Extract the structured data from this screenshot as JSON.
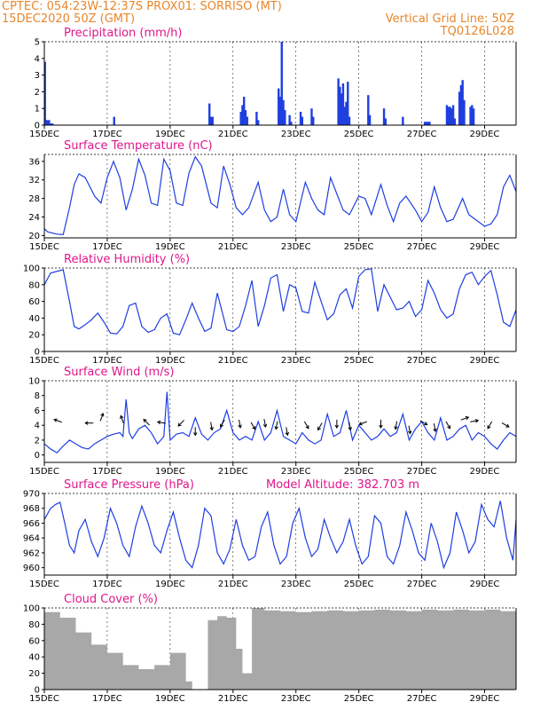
{
  "header": {
    "line1": "CPTEC:   054:23W-12:37S   PROX01: SORRISO (MT)",
    "line2": "15DEC2020 50Z (GMT)",
    "right1": "Vertical Grid Line: 50Z",
    "right2": "TQ0126L028"
  },
  "colors": {
    "series": "#1f3fe0",
    "cloud": "#a8a8a8",
    "title": "#e0168c",
    "header": "#e8862a"
  },
  "chart_data": [
    {
      "type": "bar",
      "title": "Precipitation  (mm/h)",
      "xlim": [
        0,
        15
      ],
      "ylim": [
        0,
        5
      ],
      "yticks": [
        0,
        1,
        2,
        3,
        4,
        5
      ],
      "xticks": [
        0,
        2,
        4,
        6,
        8,
        10,
        12,
        14
      ],
      "xtick_labels": [
        "15DEC",
        "17DEC",
        "19DEC",
        "21DEC",
        "23DEC",
        "25DEC",
        "27DEC",
        "29DEC"
      ],
      "x": [
        0.02,
        0.06,
        0.1,
        0.15,
        0.2,
        0.26,
        2.22,
        5.25,
        5.3,
        5.35,
        6.25,
        6.3,
        6.35,
        6.4,
        6.45,
        6.75,
        6.8,
        7.45,
        7.5,
        7.55,
        7.6,
        7.65,
        7.8,
        7.85,
        8.15,
        8.2,
        8.5,
        8.55,
        9.35,
        9.4,
        9.45,
        9.5,
        9.55,
        9.6,
        9.65,
        9.7,
        10.3,
        10.35,
        10.8,
        10.85,
        11.4,
        12.1,
        12.15,
        12.2,
        12.25,
        12.8,
        12.85,
        12.9,
        12.95,
        13.0,
        13.05,
        13.2,
        13.25,
        13.3,
        13.35,
        13.55,
        13.6,
        13.65
      ],
      "values": [
        3.8,
        0.3,
        0.3,
        0.3,
        0.1,
        0.1,
        0.5,
        1.3,
        0.5,
        0.5,
        0.8,
        1.2,
        1.7,
        0.9,
        0.5,
        0.8,
        0.3,
        2.2,
        1.7,
        5.0,
        1.5,
        0.9,
        0.6,
        0.2,
        0.8,
        0.5,
        1.0,
        0.5,
        2.8,
        2.3,
        1.9,
        2.5,
        1.1,
        1.4,
        2.6,
        0.5,
        1.8,
        0.6,
        1.0,
        0.4,
        0.5,
        0.2,
        0.2,
        0.2,
        0.2,
        1.2,
        1.1,
        1.1,
        1.0,
        1.2,
        0.4,
        2.0,
        2.4,
        2.7,
        1.5,
        1.1,
        1.2,
        1.0
      ]
    },
    {
      "type": "line",
      "title": "Surface Temperature (nC)",
      "xlim": [
        0,
        15
      ],
      "ylim": [
        19.5,
        37.5
      ],
      "yticks": [
        20,
        24,
        28,
        32,
        36
      ],
      "xticks": [
        0,
        2,
        4,
        6,
        8,
        10,
        12,
        14
      ],
      "xtick_labels": [
        "15DEC",
        "17DEC",
        "19DEC",
        "21DEC",
        "23DEC",
        "25DEC",
        "27DEC",
        "29DEC"
      ],
      "x": [
        0,
        0.1,
        0.4,
        0.6,
        0.8,
        0.95,
        1.1,
        1.3,
        1.6,
        1.8,
        2.0,
        2.2,
        2.4,
        2.6,
        2.8,
        3.0,
        3.2,
        3.4,
        3.6,
        3.8,
        4.0,
        4.2,
        4.4,
        4.6,
        4.8,
        5.0,
        5.3,
        5.5,
        5.7,
        5.9,
        6.1,
        6.3,
        6.5,
        6.8,
        7.0,
        7.2,
        7.4,
        7.6,
        7.8,
        8.0,
        8.3,
        8.5,
        8.7,
        8.9,
        9.1,
        9.3,
        9.5,
        9.7,
        10.0,
        10.2,
        10.4,
        10.7,
        10.9,
        11.1,
        11.3,
        11.5,
        11.8,
        12.0,
        12.2,
        12.4,
        12.6,
        12.8,
        13.0,
        13.3,
        13.5,
        13.7,
        14.0,
        14.2,
        14.4,
        14.6,
        14.8,
        15.0
      ],
      "values": [
        21.5,
        20.8,
        20.3,
        20.2,
        26.0,
        31.0,
        33.3,
        32.5,
        28.5,
        27.0,
        32.5,
        36.0,
        32.5,
        25.5,
        30.0,
        36.5,
        33.0,
        27.0,
        26.5,
        36.5,
        34.0,
        27.0,
        26.5,
        33.5,
        37.0,
        35.0,
        27.0,
        26.0,
        35.0,
        31.0,
        26.0,
        24.5,
        26.0,
        31.5,
        25.5,
        23.0,
        24.0,
        30.0,
        24.5,
        23.0,
        31.5,
        28.0,
        25.5,
        24.5,
        32.5,
        29.0,
        25.5,
        24.5,
        28.5,
        28.0,
        24.5,
        31.0,
        26.5,
        23.0,
        27.0,
        28.5,
        25.5,
        23.0,
        25.0,
        30.5,
        26.0,
        23.0,
        23.5,
        28.0,
        24.5,
        23.5,
        22.0,
        22.5,
        24.5,
        30.5,
        33.0,
        29.5
      ]
    },
    {
      "type": "line",
      "title": "Relative Humidity (%)",
      "xlim": [
        0,
        15
      ],
      "ylim": [
        0,
        100
      ],
      "yticks": [
        0,
        20,
        40,
        60,
        80,
        100
      ],
      "xticks": [
        0,
        2,
        4,
        6,
        8,
        10,
        12,
        14
      ],
      "xtick_labels": [
        "15DEC",
        "17DEC",
        "19DEC",
        "21DEC",
        "23DEC",
        "25DEC",
        "27DEC",
        "29DEC"
      ],
      "x": [
        0,
        0.2,
        0.4,
        0.6,
        0.8,
        0.95,
        1.1,
        1.3,
        1.5,
        1.7,
        1.9,
        2.1,
        2.3,
        2.5,
        2.7,
        2.9,
        3.1,
        3.3,
        3.5,
        3.7,
        3.9,
        4.1,
        4.3,
        4.5,
        4.7,
        4.9,
        5.1,
        5.3,
        5.5,
        5.8,
        6.0,
        6.2,
        6.4,
        6.6,
        6.8,
        7.0,
        7.2,
        7.4,
        7.6,
        7.8,
        8.0,
        8.2,
        8.4,
        8.6,
        8.8,
        9.0,
        9.2,
        9.4,
        9.6,
        9.8,
        10.0,
        10.2,
        10.4,
        10.6,
        10.8,
        11.0,
        11.2,
        11.4,
        11.6,
        11.8,
        12.0,
        12.2,
        12.4,
        12.6,
        12.8,
        13.0,
        13.2,
        13.4,
        13.6,
        13.8,
        14.0,
        14.2,
        14.4,
        14.6,
        14.8,
        15.0
      ],
      "values": [
        80,
        94,
        96,
        98,
        60,
        30,
        27,
        32,
        38,
        46,
        35,
        22,
        21,
        30,
        55,
        58,
        30,
        23,
        26,
        40,
        45,
        22,
        20,
        38,
        58,
        40,
        24,
        28,
        70,
        26,
        24,
        30,
        55,
        85,
        30,
        55,
        88,
        92,
        48,
        80,
        76,
        48,
        46,
        83,
        60,
        38,
        45,
        68,
        75,
        52,
        90,
        98,
        99,
        48,
        80,
        65,
        50,
        52,
        60,
        42,
        50,
        85,
        70,
        50,
        40,
        45,
        75,
        92,
        95,
        80,
        90,
        97,
        68,
        35,
        30,
        50
      ]
    },
    {
      "type": "line",
      "title": "Surface Wind (m/s)",
      "xlim": [
        0,
        15
      ],
      "ylim": [
        -1,
        10
      ],
      "yticks": [
        0,
        2,
        4,
        6,
        8,
        10
      ],
      "xticks": [
        0,
        2,
        4,
        6,
        8,
        10,
        12,
        14
      ],
      "xtick_labels": [
        "15DEC",
        "17DEC",
        "19DEC",
        "21DEC",
        "23DEC",
        "25DEC",
        "27DEC",
        "29DEC"
      ],
      "x": [
        0,
        0.2,
        0.4,
        0.6,
        0.8,
        1.0,
        1.2,
        1.4,
        1.6,
        1.8,
        2.0,
        2.2,
        2.4,
        2.5,
        2.6,
        2.7,
        2.8,
        3.0,
        3.2,
        3.4,
        3.6,
        3.8,
        3.9,
        4.0,
        4.2,
        4.4,
        4.6,
        4.8,
        5.0,
        5.2,
        5.4,
        5.6,
        5.8,
        6.0,
        6.2,
        6.4,
        6.6,
        6.8,
        7.0,
        7.2,
        7.4,
        7.6,
        7.8,
        8.0,
        8.2,
        8.4,
        8.6,
        8.8,
        9.0,
        9.2,
        9.4,
        9.6,
        9.8,
        10.0,
        10.2,
        10.4,
        10.6,
        10.8,
        11.0,
        11.2,
        11.4,
        11.6,
        11.8,
        12.0,
        12.2,
        12.4,
        12.6,
        12.8,
        13.0,
        13.2,
        13.4,
        13.6,
        13.8,
        14.0,
        14.2,
        14.4,
        14.6,
        14.8,
        15.0
      ],
      "values": [
        1.5,
        0.8,
        0.3,
        1.2,
        2.0,
        1.5,
        1.0,
        0.8,
        1.5,
        2.0,
        2.5,
        2.8,
        3.0,
        2.5,
        7.5,
        3.0,
        2.2,
        3.5,
        4.0,
        3.0,
        1.5,
        2.5,
        8.5,
        2.0,
        2.8,
        3.0,
        2.5,
        5.0,
        2.8,
        2.0,
        3.0,
        3.5,
        6.0,
        3.0,
        2.0,
        2.5,
        2.0,
        4.5,
        2.0,
        3.0,
        6.0,
        2.5,
        2.0,
        1.5,
        3.0,
        2.0,
        1.5,
        2.0,
        5.5,
        2.5,
        3.0,
        6.0,
        2.0,
        4.0,
        3.0,
        2.0,
        2.5,
        3.5,
        2.5,
        3.0,
        5.5,
        2.0,
        3.5,
        4.5,
        3.0,
        2.0,
        5.0,
        2.0,
        2.5,
        3.5,
        4.0,
        2.0,
        3.0,
        2.5,
        1.5,
        0.8,
        2.0,
        3.0,
        2.5
      ],
      "vectors": [
        {
          "x": 0.5,
          "y": 4.5,
          "angle": 200
        },
        {
          "x": 1.5,
          "y": 4.3,
          "angle": 180
        },
        {
          "x": 1.8,
          "y": 4.8,
          "angle": 290
        },
        {
          "x": 2.5,
          "y": 4.5,
          "angle": 250
        },
        {
          "x": 3.3,
          "y": 4.2,
          "angle": 225
        },
        {
          "x": 3.8,
          "y": 4.3,
          "angle": 190
        },
        {
          "x": 4.4,
          "y": 4.5,
          "angle": 135
        },
        {
          "x": 4.8,
          "y": 3.5,
          "angle": 90
        },
        {
          "x": 5.3,
          "y": 4.2,
          "angle": 80
        },
        {
          "x": 5.7,
          "y": 4.5,
          "angle": 120
        },
        {
          "x": 6.2,
          "y": 4.5,
          "angle": 80
        },
        {
          "x": 6.6,
          "y": 4.2,
          "angle": 60
        },
        {
          "x": 7.0,
          "y": 4.6,
          "angle": 80
        },
        {
          "x": 7.4,
          "y": 4.3,
          "angle": 100
        },
        {
          "x": 7.7,
          "y": 3.5,
          "angle": 80
        },
        {
          "x": 8.3,
          "y": 4.3,
          "angle": 60
        },
        {
          "x": 8.8,
          "y": 4.1,
          "angle": 120
        },
        {
          "x": 9.3,
          "y": 4.5,
          "angle": 90
        },
        {
          "x": 9.7,
          "y": 4.2,
          "angle": 80
        },
        {
          "x": 10.2,
          "y": 4.4,
          "angle": 160
        },
        {
          "x": 10.7,
          "y": 4.5,
          "angle": 90
        },
        {
          "x": 11.2,
          "y": 4.3,
          "angle": 100
        },
        {
          "x": 11.6,
          "y": 3.7,
          "angle": 80
        },
        {
          "x": 12.0,
          "y": 4.5,
          "angle": 30
        },
        {
          "x": 12.4,
          "y": 4.0,
          "angle": 80
        },
        {
          "x": 12.8,
          "y": 4.3,
          "angle": 60
        },
        {
          "x": 13.3,
          "y": 4.8,
          "angle": 340
        },
        {
          "x": 13.6,
          "y": 4.5,
          "angle": 350
        },
        {
          "x": 14.2,
          "y": 4.3,
          "angle": 120
        },
        {
          "x": 14.6,
          "y": 4.2,
          "angle": 30
        }
      ]
    },
    {
      "type": "line",
      "title": "Surface Pressure (hPa)",
      "annotation": "Model Altitude: 382.703  m",
      "xlim": [
        0,
        15
      ],
      "ylim": [
        959,
        970
      ],
      "yticks": [
        960,
        962,
        964,
        966,
        968,
        970
      ],
      "xticks": [
        0,
        2,
        4,
        6,
        8,
        10,
        12,
        14
      ],
      "xtick_labels": [
        "15DEC",
        "17DEC",
        "19DEC",
        "21DEC",
        "23DEC",
        "25DEC",
        "27DEC",
        "29DEC"
      ],
      "x": [
        0,
        0.2,
        0.35,
        0.5,
        0.65,
        0.8,
        0.95,
        1.1,
        1.3,
        1.5,
        1.7,
        1.9,
        2.1,
        2.3,
        2.5,
        2.7,
        2.9,
        3.1,
        3.3,
        3.5,
        3.7,
        3.9,
        4.1,
        4.3,
        4.5,
        4.7,
        4.9,
        5.1,
        5.3,
        5.5,
        5.7,
        5.9,
        6.1,
        6.3,
        6.5,
        6.7,
        6.9,
        7.1,
        7.3,
        7.5,
        7.7,
        7.9,
        8.1,
        8.3,
        8.5,
        8.7,
        8.9,
        9.1,
        9.3,
        9.5,
        9.7,
        9.9,
        10.1,
        10.3,
        10.5,
        10.7,
        10.9,
        11.1,
        11.3,
        11.5,
        11.7,
        11.9,
        12.1,
        12.3,
        12.5,
        12.7,
        12.9,
        13.1,
        13.3,
        13.5,
        13.7,
        13.9,
        14.1,
        14.3,
        14.5,
        14.7,
        14.9,
        15.0
      ],
      "values": [
        966.5,
        968.0,
        968.5,
        968.8,
        966.0,
        963.0,
        962.0,
        965.0,
        966.5,
        963.5,
        961.5,
        964.0,
        968.0,
        966.0,
        963.0,
        961.5,
        965.5,
        968.3,
        966.0,
        963.0,
        962.0,
        965.0,
        967.5,
        964.0,
        961.0,
        960.0,
        963.0,
        968.0,
        967.0,
        962.0,
        960.5,
        962.5,
        966.5,
        963.0,
        961.0,
        961.5,
        965.5,
        967.5,
        963.0,
        960.5,
        961.5,
        966.0,
        968.0,
        964.0,
        961.5,
        962.5,
        966.5,
        964.0,
        962.0,
        963.5,
        966.5,
        963.0,
        960.5,
        961.5,
        967.0,
        966.0,
        961.5,
        960.5,
        963.0,
        967.5,
        965.0,
        962.0,
        961.0,
        966.0,
        963.5,
        960.0,
        962.0,
        967.5,
        965.0,
        962.0,
        963.5,
        968.5,
        966.5,
        965.5,
        969.0,
        964.0,
        961.0,
        966.5
      ]
    },
    {
      "type": "bar",
      "title": "Cloud Cover (%)",
      "xlim": [
        0,
        15
      ],
      "ylim": [
        0,
        100
      ],
      "yticks": [
        0,
        20,
        40,
        60,
        80,
        100
      ],
      "xticks": [
        0,
        2,
        4,
        6,
        8,
        10,
        12,
        14
      ],
      "xtick_labels": [
        "15DEC",
        "17DEC",
        "19DEC",
        "21DEC",
        "23DEC",
        "25DEC",
        "27DEC",
        "29DEC"
      ],
      "x": [
        0,
        0.5,
        1.0,
        1.5,
        2.0,
        2.5,
        3.0,
        3.5,
        4.0,
        4.5,
        4.7,
        4.9,
        5.2,
        5.5,
        5.8,
        6.1,
        6.3,
        6.6,
        7.0,
        7.5,
        8.0,
        8.5,
        9.0,
        9.5,
        10.0,
        10.5,
        11.0,
        11.5,
        12.0,
        12.5,
        13.0,
        13.5,
        14.0,
        14.5,
        15.0
      ],
      "values": [
        95,
        88,
        70,
        55,
        45,
        30,
        25,
        30,
        45,
        10,
        0,
        0,
        85,
        90,
        88,
        50,
        20,
        100,
        97,
        96,
        95,
        96,
        97,
        96,
        97,
        98,
        97,
        96,
        98,
        97,
        98,
        97,
        98,
        96,
        98
      ]
    }
  ]
}
